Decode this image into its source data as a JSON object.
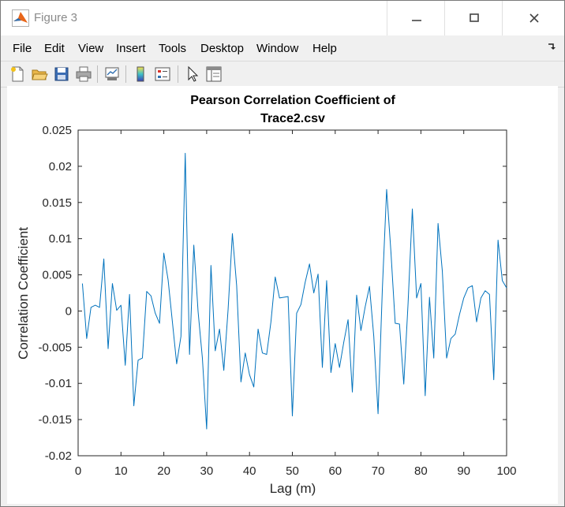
{
  "window": {
    "title": "Figure 3",
    "icon": "matlab-icon",
    "controls": [
      "minimize-icon",
      "maximize-icon",
      "close-icon"
    ]
  },
  "menu": {
    "items": [
      "File",
      "Edit",
      "View",
      "Insert",
      "Tools",
      "Desktop",
      "Window",
      "Help"
    ]
  },
  "toolbar": {
    "buttons": [
      {
        "name": "new-figure",
        "icon": "new-file-icon"
      },
      {
        "name": "open-file",
        "icon": "folder-open-icon"
      },
      {
        "name": "save-figure",
        "icon": "save-icon"
      },
      {
        "name": "print-figure",
        "icon": "print-icon"
      },
      {
        "name": "link-plot",
        "icon": "link-plot-icon"
      },
      {
        "name": "insert-colorbar",
        "icon": "colorbar-icon"
      },
      {
        "name": "insert-legend",
        "icon": "legend-icon"
      },
      {
        "name": "edit-plot",
        "icon": "arrow-cursor-icon"
      },
      {
        "name": "property-inspector",
        "icon": "property-inspector-icon"
      }
    ]
  },
  "chart_data": {
    "type": "line",
    "title": [
      "Pearson Correlation Coefficient of",
      "Trace2.csv"
    ],
    "xlabel": "Lag (m)",
    "ylabel": "Correlation Coefficient",
    "xlim": [
      0,
      100
    ],
    "ylim": [
      -0.02,
      0.025
    ],
    "xticks": [
      0,
      10,
      20,
      30,
      40,
      50,
      60,
      70,
      80,
      90,
      100
    ],
    "xtick_labels": [
      "0",
      "10",
      "20",
      "30",
      "40",
      "50",
      "60",
      "70",
      "80",
      "90",
      "100"
    ],
    "yticks": [
      -0.02,
      -0.015,
      -0.01,
      -0.005,
      0,
      0.005,
      0.01,
      0.015,
      0.02,
      0.025
    ],
    "ytick_labels": [
      "-0.02",
      "-0.015",
      "-0.01",
      "-0.005",
      "0",
      "0.005",
      "0.01",
      "0.015",
      "0.02",
      "0.025"
    ],
    "grid": false,
    "series": [
      {
        "color": "#0072bd",
        "x": [
          1,
          2,
          3,
          4,
          5,
          6,
          7,
          8,
          9,
          10,
          11,
          12,
          13,
          14,
          15,
          16,
          17,
          18,
          19,
          20,
          21,
          22,
          23,
          24,
          25,
          26,
          27,
          28,
          29,
          30,
          31,
          32,
          33,
          34,
          35,
          36,
          37,
          38,
          39,
          40,
          41,
          42,
          43,
          44,
          45,
          46,
          47,
          48,
          49,
          50,
          51,
          52,
          53,
          54,
          55,
          56,
          57,
          58,
          59,
          60,
          61,
          62,
          63,
          64,
          65,
          66,
          67,
          68,
          69,
          70,
          71,
          72,
          73,
          74,
          75,
          76,
          77,
          78,
          79,
          80,
          81,
          82,
          83,
          84,
          85,
          86,
          87,
          88,
          89,
          90,
          91,
          92,
          93,
          94,
          95,
          96,
          97,
          98,
          99,
          100
        ],
        "values": [
          0.0038,
          -0.0038,
          0.0005,
          0.0008,
          0.0005,
          0.0072,
          -0.0052,
          0.0038,
          0.0001,
          0.0008,
          -0.0075,
          0.0023,
          -0.0131,
          -0.0068,
          -0.0065,
          0.0027,
          0.0021,
          -0.0003,
          -0.0017,
          0.008,
          0.0043,
          -0.0015,
          -0.0073,
          -0.0035,
          0.0218,
          -0.006,
          0.0091,
          -0.0001,
          -0.0065,
          -0.0163,
          0.0063,
          -0.0055,
          -0.0025,
          -0.0082,
          0.0002,
          0.0107,
          0.0035,
          -0.0098,
          -0.0058,
          -0.0088,
          -0.0105,
          -0.0025,
          -0.0058,
          -0.006,
          -0.0015,
          0.0047,
          0.0018,
          0.0019,
          0.002,
          -0.0145,
          -0.0003,
          0.0009,
          0.004,
          0.0065,
          0.0025,
          0.0051,
          -0.0078,
          0.0042,
          -0.0085,
          -0.0045,
          -0.0078,
          -0.0043,
          -0.0012,
          -0.0112,
          0.0022,
          -0.0027,
          0.0006,
          0.0034,
          -0.0035,
          -0.0142,
          0.003,
          0.0168,
          0.0082,
          -0.0017,
          -0.0018,
          -0.0101,
          0.001,
          0.0141,
          0.0018,
          0.0038,
          -0.0117,
          0.0019,
          -0.0065,
          0.0121,
          0.0055,
          -0.0065,
          -0.0038,
          -0.0032,
          -0.0005,
          0.0018,
          0.0032,
          0.0035,
          -0.0015,
          0.0018,
          0.0028,
          0.0023,
          -0.0095,
          0.0098,
          0.0042,
          0.0032
        ]
      }
    ]
  }
}
